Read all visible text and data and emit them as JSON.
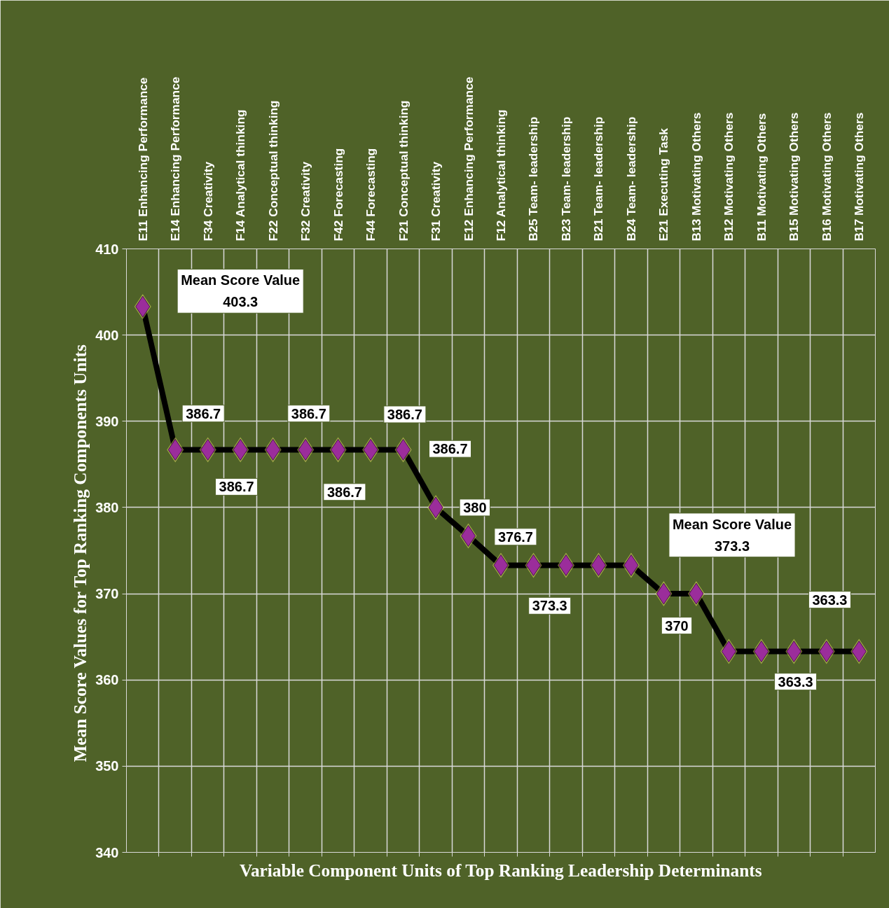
{
  "chart_data": {
    "type": "line",
    "xlabel": "Variable Component Units of Top Ranking Leadership Determinants",
    "ylabel": "Mean Score Values for Top Ranking Components  Units",
    "categories": [
      "E11  Enhancing Performance",
      "E14  Enhancing Performance",
      "F34  Creativity",
      "F14  Analytical thinking",
      "F22  Conceptual thinking",
      "F32  Creativity",
      "F42  Forecasting",
      "F44  Forecasting",
      "F21  Conceptual thinking",
      "F31  Creativity",
      "E12  Enhancing Performance",
      "F12  Analytical thinking",
      "B25  Team- leadership",
      "B23  Team- leadership",
      "B21  Team- leadership",
      "B24  Team- leadership",
      "E21  Executing Task",
      "B13  Motivating Others",
      "B12  Motivating Others",
      "B11  Motivating Others",
      "B15  Motivating Others",
      "B16  Motivating Others",
      "B17  Motivating Others"
    ],
    "series": [
      {
        "color": "#000000",
        "values": [
          403.3,
          386.7,
          386.7,
          386.7,
          386.7,
          386.7,
          386.7,
          386.7,
          386.7,
          380,
          376.7,
          373.3,
          373.3,
          373.3,
          373.3,
          373.3,
          370,
          370,
          363.3,
          363.3,
          363.3,
          363.3,
          363.3
        ]
      }
    ],
    "marker": "diamond",
    "line_style": "solid",
    "grid": true,
    "ylim": [
      340,
      410
    ],
    "yticks": [
      340,
      350,
      360,
      370,
      380,
      390,
      400,
      410
    ],
    "annotations": [
      {
        "text": "Mean Score Value\n403.3",
        "x": "E11  Enhancing Performance",
        "y": 403.3
      },
      {
        "text": "386.7",
        "x": "E14  Enhancing Performance",
        "y": 386.7
      },
      {
        "text": "386.7",
        "x": "F14  Analytical thinking",
        "y": 386.7
      },
      {
        "text": "386.7",
        "x": "F32  Creativity",
        "y": 386.7
      },
      {
        "text": "386.7",
        "x": "F42  Forecasting",
        "y": 386.7
      },
      {
        "text": "386.7",
        "x": "F44  Forecasting",
        "y": 386.7
      },
      {
        "text": "386.7",
        "x": "F21  Conceptual thinking",
        "y": 386.7
      },
      {
        "text": "380",
        "x": "F31  Creativity",
        "y": 380
      },
      {
        "text": "376.7",
        "x": "E12  Enhancing Performance",
        "y": 376.7
      },
      {
        "text": "373.3",
        "x": "B25  Team- leadership",
        "y": 373.3
      },
      "Mean Score Value\n373.3",
      {
        "text": "370",
        "x": "E21  Executing Task",
        "y": 370
      },
      "363.3",
      {
        "text": "363.3",
        "x": "B15  Motivating Others",
        "y": 363.3
      }
    ]
  }
}
